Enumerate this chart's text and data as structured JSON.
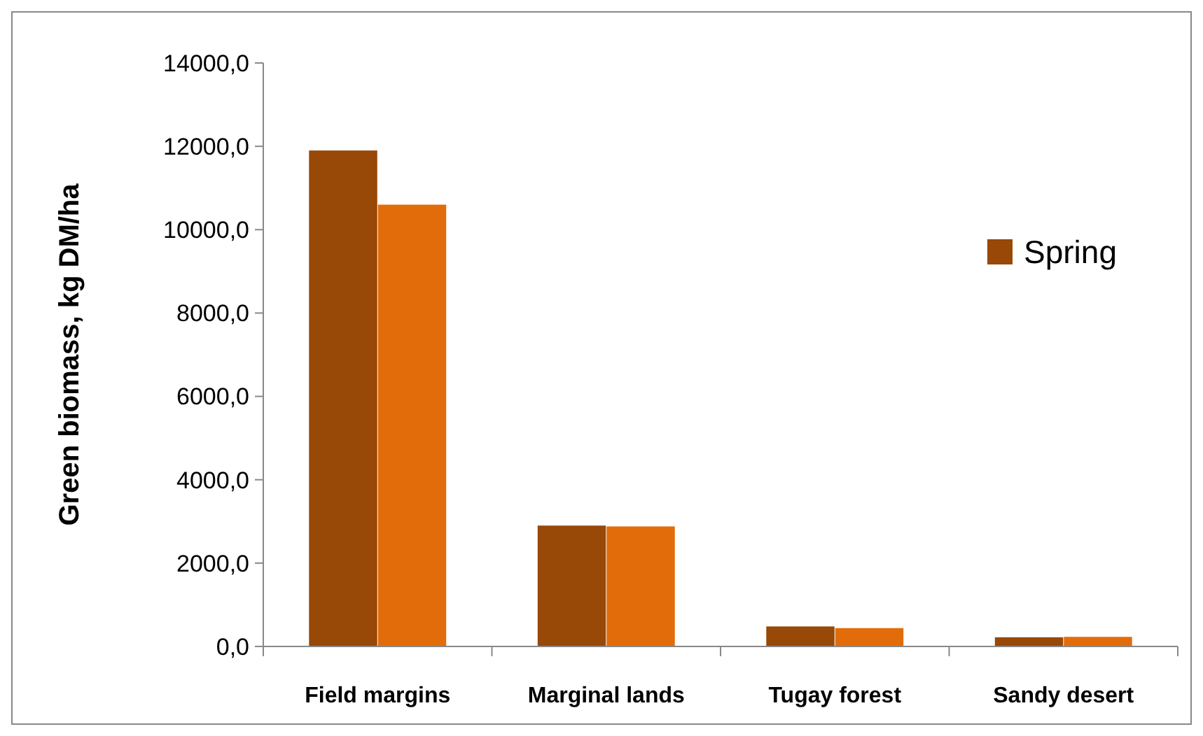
{
  "chart_data": {
    "type": "bar",
    "ylabel": "Green biomass, kg DM/ha",
    "categories": [
      "Field margins",
      "Marginal lands",
      "Tugay forest",
      "Sandy desert"
    ],
    "series": [
      {
        "name": "Spring",
        "color": "#984807",
        "values": [
          11900,
          2900,
          480,
          220
        ]
      },
      {
        "color": "#e36c0a",
        "values": [
          10600,
          2880,
          440,
          230
        ]
      }
    ],
    "ylim": [
      0,
      14000
    ],
    "yticks": [
      {
        "value": 0,
        "label": "0,0"
      },
      {
        "value": 2000,
        "label": "2000,0"
      },
      {
        "value": 4000,
        "label": "4000,0"
      },
      {
        "value": 6000,
        "label": "6000,0"
      },
      {
        "value": 8000,
        "label": "8000,0"
      },
      {
        "value": 10000,
        "label": "10000,0"
      },
      {
        "value": 12000,
        "label": "12000,0"
      },
      {
        "value": 14000,
        "label": "14000,0"
      }
    ],
    "grid": false,
    "legend": "right"
  }
}
